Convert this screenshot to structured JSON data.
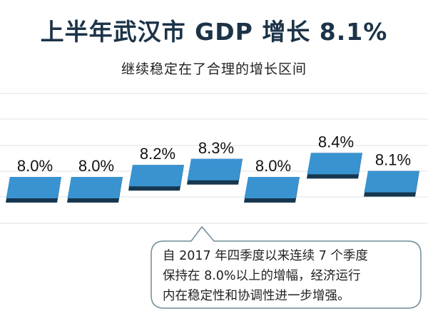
{
  "header": {
    "title": "上半年武汉市 GDP 增长 8.1%",
    "subtitle": "继续稳定在了合理的增长区间"
  },
  "chart_data": {
    "type": "bar",
    "title": "上半年武汉市 GDP 增长 8.1%",
    "subtitle": "继续稳定在了合理的增长区间",
    "categories": [
      "",
      "",
      "",
      "",
      "",
      "",
      ""
    ],
    "values": [
      8.0,
      8.0,
      8.2,
      8.3,
      8.0,
      8.4,
      8.1
    ],
    "labels": [
      "8.0%",
      "8.0%",
      "8.2%",
      "8.3%",
      "8.0%",
      "8.4%",
      "8.1%"
    ],
    "unit": "%",
    "grid": true,
    "xlabel": "",
    "ylabel": "",
    "colors": {
      "top": "#3a93d1",
      "side": "#16374f",
      "grid": "#e6e6e6"
    }
  },
  "callout": {
    "lines": [
      "自 2017 年四季度以来连续 7 个季度",
      "保持在 8.0%以上的增幅，经济运行",
      "内在稳定性和协调性进一步增强。"
    ]
  }
}
